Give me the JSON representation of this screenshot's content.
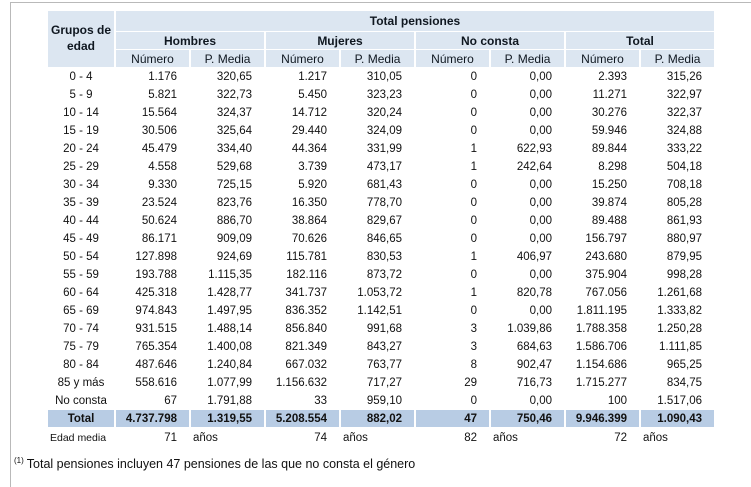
{
  "chart_data": {
    "type": "table",
    "title": "Total pensiones",
    "corner_header": "Grupos de edad",
    "groups": [
      "Hombres",
      "Mujeres",
      "No consta",
      "Total"
    ],
    "sub_headers": [
      "Número",
      "P. Media"
    ],
    "rows": [
      [
        "0 - 4",
        "1.176",
        "320,65",
        "1.217",
        "310,05",
        "0",
        "0,00",
        "2.393",
        "315,26"
      ],
      [
        "5 - 9",
        "5.821",
        "322,73",
        "5.450",
        "323,23",
        "0",
        "0,00",
        "11.271",
        "322,97"
      ],
      [
        "10 - 14",
        "15.564",
        "324,37",
        "14.712",
        "320,24",
        "0",
        "0,00",
        "30.276",
        "322,37"
      ],
      [
        "15 - 19",
        "30.506",
        "325,64",
        "29.440",
        "324,09",
        "0",
        "0,00",
        "59.946",
        "324,88"
      ],
      [
        "20 - 24",
        "45.479",
        "334,40",
        "44.364",
        "331,99",
        "1",
        "622,93",
        "89.844",
        "333,22"
      ],
      [
        "25 - 29",
        "4.558",
        "529,68",
        "3.739",
        "473,17",
        "1",
        "242,64",
        "8.298",
        "504,18"
      ],
      [
        "30 - 34",
        "9.330",
        "725,15",
        "5.920",
        "681,43",
        "0",
        "0,00",
        "15.250",
        "708,18"
      ],
      [
        "35 - 39",
        "23.524",
        "823,76",
        "16.350",
        "778,70",
        "0",
        "0,00",
        "39.874",
        "805,28"
      ],
      [
        "40 - 44",
        "50.624",
        "886,70",
        "38.864",
        "829,67",
        "0",
        "0,00",
        "89.488",
        "861,93"
      ],
      [
        "45 - 49",
        "86.171",
        "909,09",
        "70.626",
        "846,65",
        "0",
        "0,00",
        "156.797",
        "880,97"
      ],
      [
        "50 - 54",
        "127.898",
        "924,69",
        "115.781",
        "830,53",
        "1",
        "406,97",
        "243.680",
        "879,95"
      ],
      [
        "55 - 59",
        "193.788",
        "1.115,35",
        "182.116",
        "873,72",
        "0",
        "0,00",
        "375.904",
        "998,28"
      ],
      [
        "60 - 64",
        "425.318",
        "1.428,77",
        "341.737",
        "1.053,72",
        "1",
        "820,78",
        "767.056",
        "1.261,68"
      ],
      [
        "65 - 69",
        "974.843",
        "1.497,95",
        "836.352",
        "1.142,51",
        "0",
        "0,00",
        "1.811.195",
        "1.333,82"
      ],
      [
        "70 - 74",
        "931.515",
        "1.488,14",
        "856.840",
        "991,68",
        "3",
        "1.039,86",
        "1.788.358",
        "1.250,28"
      ],
      [
        "75 - 79",
        "765.354",
        "1.400,08",
        "821.349",
        "843,27",
        "3",
        "684,63",
        "1.586.706",
        "1.111,85"
      ],
      [
        "80 - 84",
        "487.646",
        "1.240,84",
        "667.032",
        "763,77",
        "8",
        "902,47",
        "1.154.686",
        "965,25"
      ],
      [
        "85 y más",
        "558.616",
        "1.077,99",
        "1.156.632",
        "717,27",
        "29",
        "716,73",
        "1.715.277",
        "834,75"
      ],
      [
        "No consta",
        "67",
        "1.791,88",
        "33",
        "959,10",
        "0",
        "0,00",
        "100",
        "1.517,06"
      ]
    ],
    "total_row": [
      "Total",
      "4.737.798",
      "1.319,55",
      "5.208.554",
      "882,02",
      "47",
      "750,46",
      "9.946.399",
      "1.090,43"
    ],
    "average_age_row": {
      "label": "Edad media",
      "values": [
        "71",
        "74",
        "82",
        "72"
      ],
      "unit": "años"
    },
    "footnote_marker": "(1)",
    "footnote_text": "Total pensiones incluyen 47 pensiones de las que no consta el género"
  },
  "colors": {
    "header_bg": "#DCE6F1",
    "total_row_bg": "#B8CCE4",
    "frame_line": "#b9b9b9"
  }
}
